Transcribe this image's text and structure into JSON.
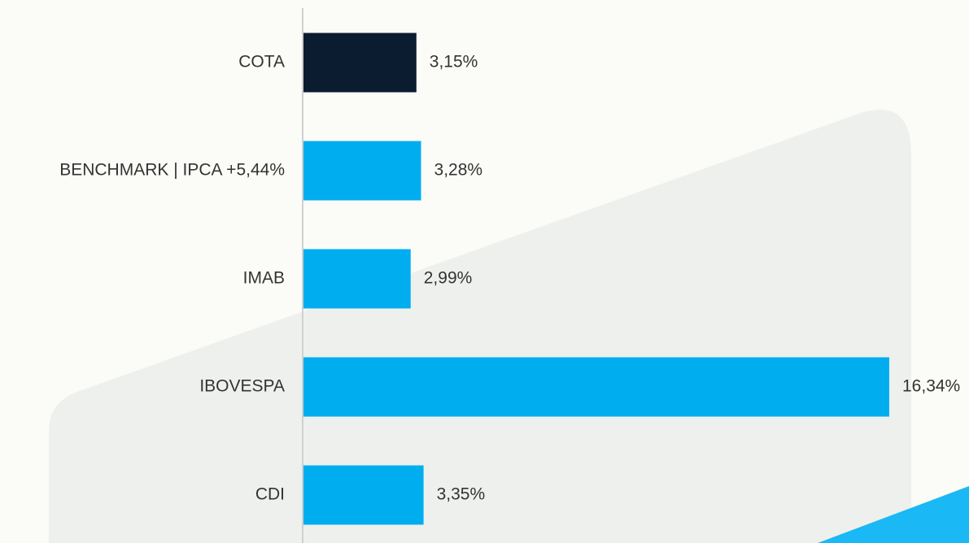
{
  "chart_data": {
    "type": "bar",
    "orientation": "horizontal",
    "categories": [
      "COTA",
      "BENCHMARK | IPCA +5,44%",
      "IMAB",
      "IBOVESPA",
      "CDI"
    ],
    "values": [
      3.15,
      3.28,
      2.99,
      16.34,
      3.35
    ],
    "value_labels": [
      "3,15%",
      "3,28%",
      "2,99%",
      "16,34%",
      "3,35%"
    ],
    "colors": [
      "#0b1c31",
      "#00aeef",
      "#00aeef",
      "#00aeef",
      "#00aeef"
    ]
  }
}
